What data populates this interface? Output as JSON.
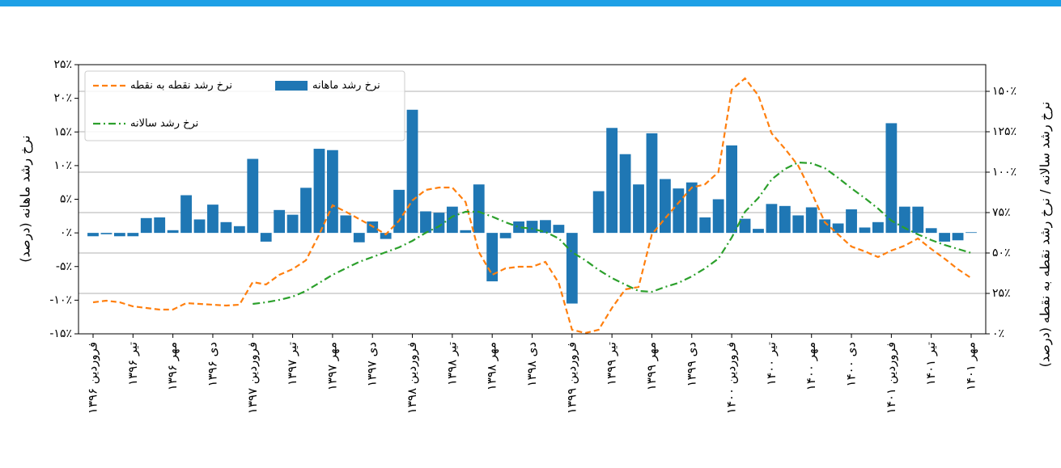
{
  "chart_data": {
    "type": "combo",
    "categories": [
      "فروردین ۱۳۹۶",
      null,
      null,
      "تیر ۱۳۹۶",
      null,
      null,
      "مهر ۱۳۹۶",
      null,
      null,
      "دی ۱۳۹۶",
      null,
      null,
      "فروردین ۱۳۹۷",
      null,
      null,
      "تیر ۱۳۹۷",
      null,
      null,
      "مهر ۱۳۹۷",
      null,
      null,
      "دی ۱۳۹۷",
      null,
      null,
      "فروردین ۱۳۹۸",
      null,
      null,
      "تیر ۱۳۹۸",
      null,
      null,
      "مهر ۱۳۹۸",
      null,
      null,
      "دی ۱۳۹۸",
      null,
      null,
      "فروردین ۱۳۹۹",
      null,
      null,
      "تیر ۱۳۹۹",
      null,
      null,
      "مهر ۱۳۹۹",
      null,
      null,
      "دی ۱۳۹۹",
      null,
      null,
      "فروردین ۱۴۰۰",
      null,
      null,
      "تیر ۱۴۰۰",
      null,
      null,
      "مهر ۱۴۰۰",
      null,
      null,
      "دی ۱۴۰۰",
      null,
      null,
      "فروردین ۱۴۰۱",
      null,
      null,
      "تیر ۱۴۰۱",
      null,
      null,
      "مهر ۱۴۰۱"
    ],
    "series": [
      {
        "name": "نرخ رشد ماهانه",
        "type": "bar",
        "axis": "y",
        "color": "#1f77b4",
        "values": [
          -0.5,
          -0.2,
          -0.5,
          -0.5,
          2.2,
          2.3,
          0.4,
          5.6,
          2.0,
          4.2,
          1.6,
          1.0,
          11.0,
          -1.3,
          3.4,
          2.7,
          6.7,
          12.5,
          12.3,
          2.6,
          -1.4,
          1.7,
          -0.9,
          6.4,
          18.3,
          3.2,
          3.0,
          3.9,
          0.4,
          7.2,
          -7.2,
          -0.8,
          1.7,
          1.8,
          1.9,
          1.2,
          -10.5,
          null,
          6.2,
          15.6,
          11.7,
          7.2,
          14.8,
          8.0,
          6.6,
          7.5,
          2.3,
          5.0,
          13.0,
          2.1,
          0.6,
          4.3,
          4.0,
          2.6,
          3.8,
          2.0,
          1.4,
          3.5,
          0.8,
          1.6,
          16.3,
          3.9,
          3.9,
          0.7,
          -1.3,
          -1.1,
          0.1
        ]
      },
      {
        "name": "نرخ رشد نقطه به نقطه",
        "type": "line",
        "axis": "y2",
        "color": "#ff7f0e",
        "linestyle": "dashed",
        "values": [
          19.5,
          20.5,
          19.5,
          17,
          16,
          15,
          15,
          19,
          18.5,
          18,
          17.5,
          18,
          32,
          30.5,
          36.5,
          40,
          45.5,
          61.5,
          79.5,
          75.5,
          71,
          66.5,
          61.5,
          70,
          82.5,
          89,
          90.5,
          90.5,
          81.5,
          50.5,
          36.5,
          40.5,
          41.5,
          41.5,
          44.5,
          31.5,
          2.5,
          0.5,
          2.5,
          16,
          27.5,
          29,
          61.5,
          71.5,
          81,
          90.5,
          92.5,
          100,
          151,
          158,
          147.5,
          124,
          114.5,
          104,
          87.5,
          69,
          61.5,
          54,
          51,
          47.5,
          51.5,
          54.5,
          59,
          52.5,
          46.5,
          40,
          34.5
        ]
      },
      {
        "name": "نرخ رشد سالانه",
        "type": "line",
        "axis": "y2",
        "color": "#2ca02c",
        "linestyle": "dashdot",
        "values": [
          null,
          null,
          null,
          null,
          null,
          null,
          null,
          null,
          null,
          null,
          null,
          null,
          18.5,
          19.5,
          21,
          23,
          26.5,
          31.5,
          36.5,
          40.5,
          44.5,
          47.5,
          50.5,
          53.5,
          57.5,
          62.5,
          66.5,
          72.5,
          75.5,
          75.5,
          72.5,
          69,
          66,
          65,
          63,
          59,
          50.5,
          45.5,
          39.5,
          34.5,
          30.5,
          26.5,
          26,
          29,
          31.5,
          35.5,
          40.5,
          46.5,
          59.5,
          75.5,
          84,
          95.5,
          102,
          106,
          105.5,
          102.5,
          96.5,
          90,
          84,
          77.5,
          70,
          65.5,
          61.5,
          58,
          55,
          52.5,
          50
        ]
      }
    ],
    "ylabel": "نرخ رشد ماهانه (درصد)",
    "y2label": "نرخ رشد سالانه / نرخ رشد نقطه به نقطه (درصد)",
    "ylim": [
      -15,
      25
    ],
    "yticks": [
      {
        "value": -15,
        "label": "-۱۵٪"
      },
      {
        "value": -10,
        "label": "-۱۰٪"
      },
      {
        "value": -5,
        "label": "-۵٪"
      },
      {
        "value": 0,
        "label": "۰٪"
      },
      {
        "value": 5,
        "label": "۵٪"
      },
      {
        "value": 10,
        "label": "۱۰٪"
      },
      {
        "value": 15,
        "label": "۱۵٪"
      },
      {
        "value": 20,
        "label": "۲۰٪"
      },
      {
        "value": 25,
        "label": "۲۵٪"
      }
    ],
    "y2lim": [
      0,
      166.5
    ],
    "y2ticks": [
      {
        "value": 0,
        "label": "۰٪"
      },
      {
        "value": 25,
        "label": "۲۵٪"
      },
      {
        "value": 50,
        "label": "۵۰٪"
      },
      {
        "value": 75,
        "label": "۷۵٪"
      },
      {
        "value": 100,
        "label": "۱۰۰٪"
      },
      {
        "value": 125,
        "label": "۱۲۵٪"
      },
      {
        "value": 150,
        "label": "۱۵۰٪"
      }
    ],
    "grid": "y2",
    "legend": "upper left"
  }
}
